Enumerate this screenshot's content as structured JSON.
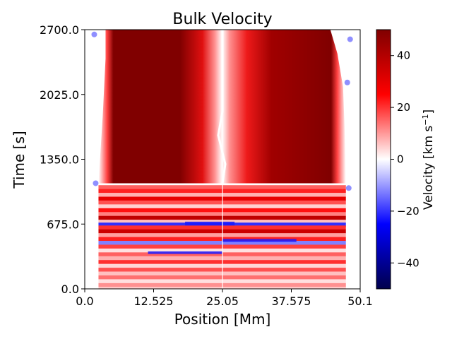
{
  "chart_data": {
    "type": "heatmap",
    "title": "Bulk Velocity",
    "xlabel": "Position [Mm]",
    "ylabel": "Time [s]",
    "xlim": [
      0.0,
      50.1
    ],
    "ylim": [
      0.0,
      2700.0
    ],
    "xticks": [
      0.0,
      12.525,
      25.05,
      37.575,
      50.1
    ],
    "xtick_labels": [
      "0.0",
      "12.525",
      "25.05",
      "37.575",
      "50.1"
    ],
    "yticks": [
      0.0,
      675.0,
      1350.0,
      2025.0,
      2700.0
    ],
    "ytick_labels": [
      "0.0",
      "675.0",
      "1350.0",
      "2025.0",
      "2700.0"
    ],
    "colorbar": {
      "label": "Velocity [km s",
      "label_superscript": "−1",
      "label_suffix": "]",
      "range": [
        -50,
        50
      ],
      "ticks": [
        40,
        20,
        0,
        -20,
        -40
      ],
      "tick_labels": [
        "40",
        "20",
        "0",
        "−20",
        "−40"
      ],
      "colormap": "seismic",
      "colors": {
        "low": "#00004c",
        "mid_low": "#0000ff",
        "zero": "#ffffff",
        "mid_high": "#ff0000",
        "high": "#800000"
      }
    },
    "description_regions": {
      "domain_edges_mm": [
        2.5,
        47.5
      ],
      "late_phase_velocity": 50,
      "central_channel_mm": 25.05,
      "transition_time_s": 1100
    }
  }
}
